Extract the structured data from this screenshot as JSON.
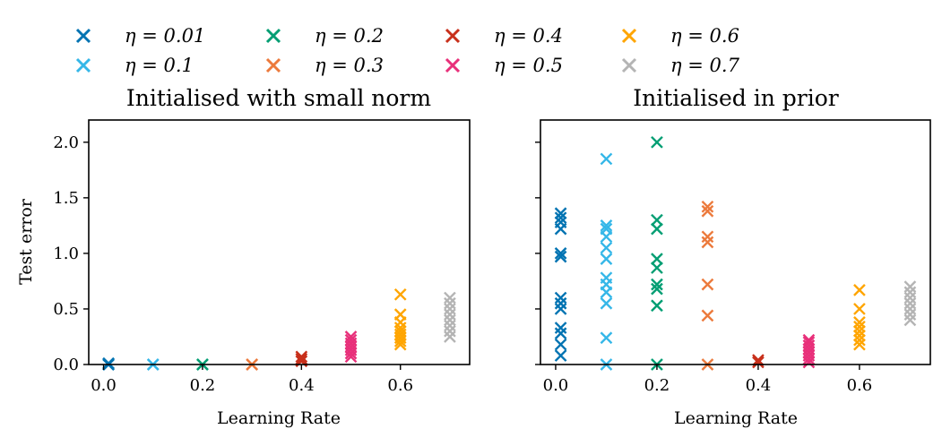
{
  "legend": {
    "items": [
      {
        "label": "η = 0.01",
        "color": "#0173b2"
      },
      {
        "label": "η = 0.1",
        "color": "#35b7e8"
      },
      {
        "label": "η = 0.2",
        "color": "#029e73"
      },
      {
        "label": "η = 0.3",
        "color": "#ec7a3c"
      },
      {
        "label": "η = 0.4",
        "color": "#c8301b"
      },
      {
        "label": "η = 0.5",
        "color": "#e8307a"
      },
      {
        "label": "η = 0.6",
        "color": "#ffa500"
      },
      {
        "label": "η = 0.7",
        "color": "#b4b4b4"
      }
    ]
  },
  "chart_data": [
    {
      "type": "scatter",
      "title": "Initialised with small norm",
      "xlabel": "Learning Rate",
      "ylabel": "Test error",
      "xlim": [
        -0.03,
        0.74
      ],
      "ylim": [
        0,
        2.2
      ],
      "xticks": [
        0.0,
        0.2,
        0.4,
        0.6
      ],
      "xtick_labels": [
        "0.0",
        "0.2",
        "0.4",
        "0.6"
      ],
      "yticks": [
        0.0,
        0.5,
        1.0,
        1.5,
        2.0
      ],
      "ytick_labels": [
        "0.0",
        "0.5",
        "1.0",
        "1.5",
        "2.0"
      ],
      "series": [
        {
          "name": "η = 0.01",
          "x": 0.01,
          "values": [
            0.0,
            0.0,
            0.01
          ]
        },
        {
          "name": "η = 0.1",
          "x": 0.1,
          "values": [
            0.0,
            0.0
          ]
        },
        {
          "name": "η = 0.2",
          "x": 0.2,
          "values": [
            0.0,
            0.0
          ]
        },
        {
          "name": "η = 0.3",
          "x": 0.3,
          "values": [
            0.0,
            0.0
          ]
        },
        {
          "name": "η = 0.4",
          "x": 0.4,
          "values": [
            0.03,
            0.05,
            0.07
          ]
        },
        {
          "name": "η = 0.5",
          "x": 0.5,
          "values": [
            0.07,
            0.1,
            0.13,
            0.16,
            0.19,
            0.22,
            0.25
          ]
        },
        {
          "name": "η = 0.6",
          "x": 0.6,
          "values": [
            0.18,
            0.21,
            0.24,
            0.27,
            0.3,
            0.33,
            0.38,
            0.45,
            0.63
          ]
        },
        {
          "name": "η = 0.7",
          "x": 0.7,
          "values": [
            0.25,
            0.3,
            0.35,
            0.4,
            0.45,
            0.5,
            0.55,
            0.6
          ]
        }
      ]
    },
    {
      "type": "scatter",
      "title": "Initialised in prior",
      "xlabel": "Learning Rate",
      "ylabel": "",
      "xlim": [
        -0.03,
        0.74
      ],
      "ylim": [
        0,
        2.2
      ],
      "xticks": [
        0.0,
        0.2,
        0.4,
        0.6
      ],
      "xtick_labels": [
        "0.0",
        "0.2",
        "0.4",
        "0.6"
      ],
      "yticks": [
        0.0,
        0.5,
        1.0,
        1.5,
        2.0
      ],
      "ytick_labels": [],
      "series": [
        {
          "name": "η = 0.01",
          "x": 0.01,
          "values": [
            0.08,
            0.18,
            0.28,
            0.33,
            0.5,
            0.55,
            0.6,
            0.97,
            1.0,
            1.22,
            1.28,
            1.32,
            1.36
          ]
        },
        {
          "name": "η = 0.1",
          "x": 0.1,
          "values": [
            0.0,
            0.24,
            0.55,
            0.65,
            0.72,
            0.78,
            0.95,
            1.05,
            1.15,
            1.22,
            1.25,
            1.85
          ]
        },
        {
          "name": "η = 0.2",
          "x": 0.2,
          "values": [
            0.0,
            0.53,
            0.68,
            0.72,
            0.87,
            0.95,
            1.22,
            1.3,
            2.0
          ]
        },
        {
          "name": "η = 0.3",
          "x": 0.3,
          "values": [
            0.0,
            0.44,
            0.72,
            1.1,
            1.15,
            1.38,
            1.42
          ]
        },
        {
          "name": "η = 0.4",
          "x": 0.4,
          "values": [
            0.02,
            0.04
          ]
        },
        {
          "name": "η = 0.5",
          "x": 0.5,
          "values": [
            0.02,
            0.05,
            0.08,
            0.11,
            0.14,
            0.17,
            0.2,
            0.22
          ]
        },
        {
          "name": "η = 0.6",
          "x": 0.6,
          "values": [
            0.18,
            0.22,
            0.26,
            0.3,
            0.34,
            0.38,
            0.5,
            0.67
          ]
        },
        {
          "name": "η = 0.7",
          "x": 0.7,
          "values": [
            0.4,
            0.45,
            0.5,
            0.55,
            0.6,
            0.65,
            0.7
          ]
        }
      ]
    }
  ]
}
